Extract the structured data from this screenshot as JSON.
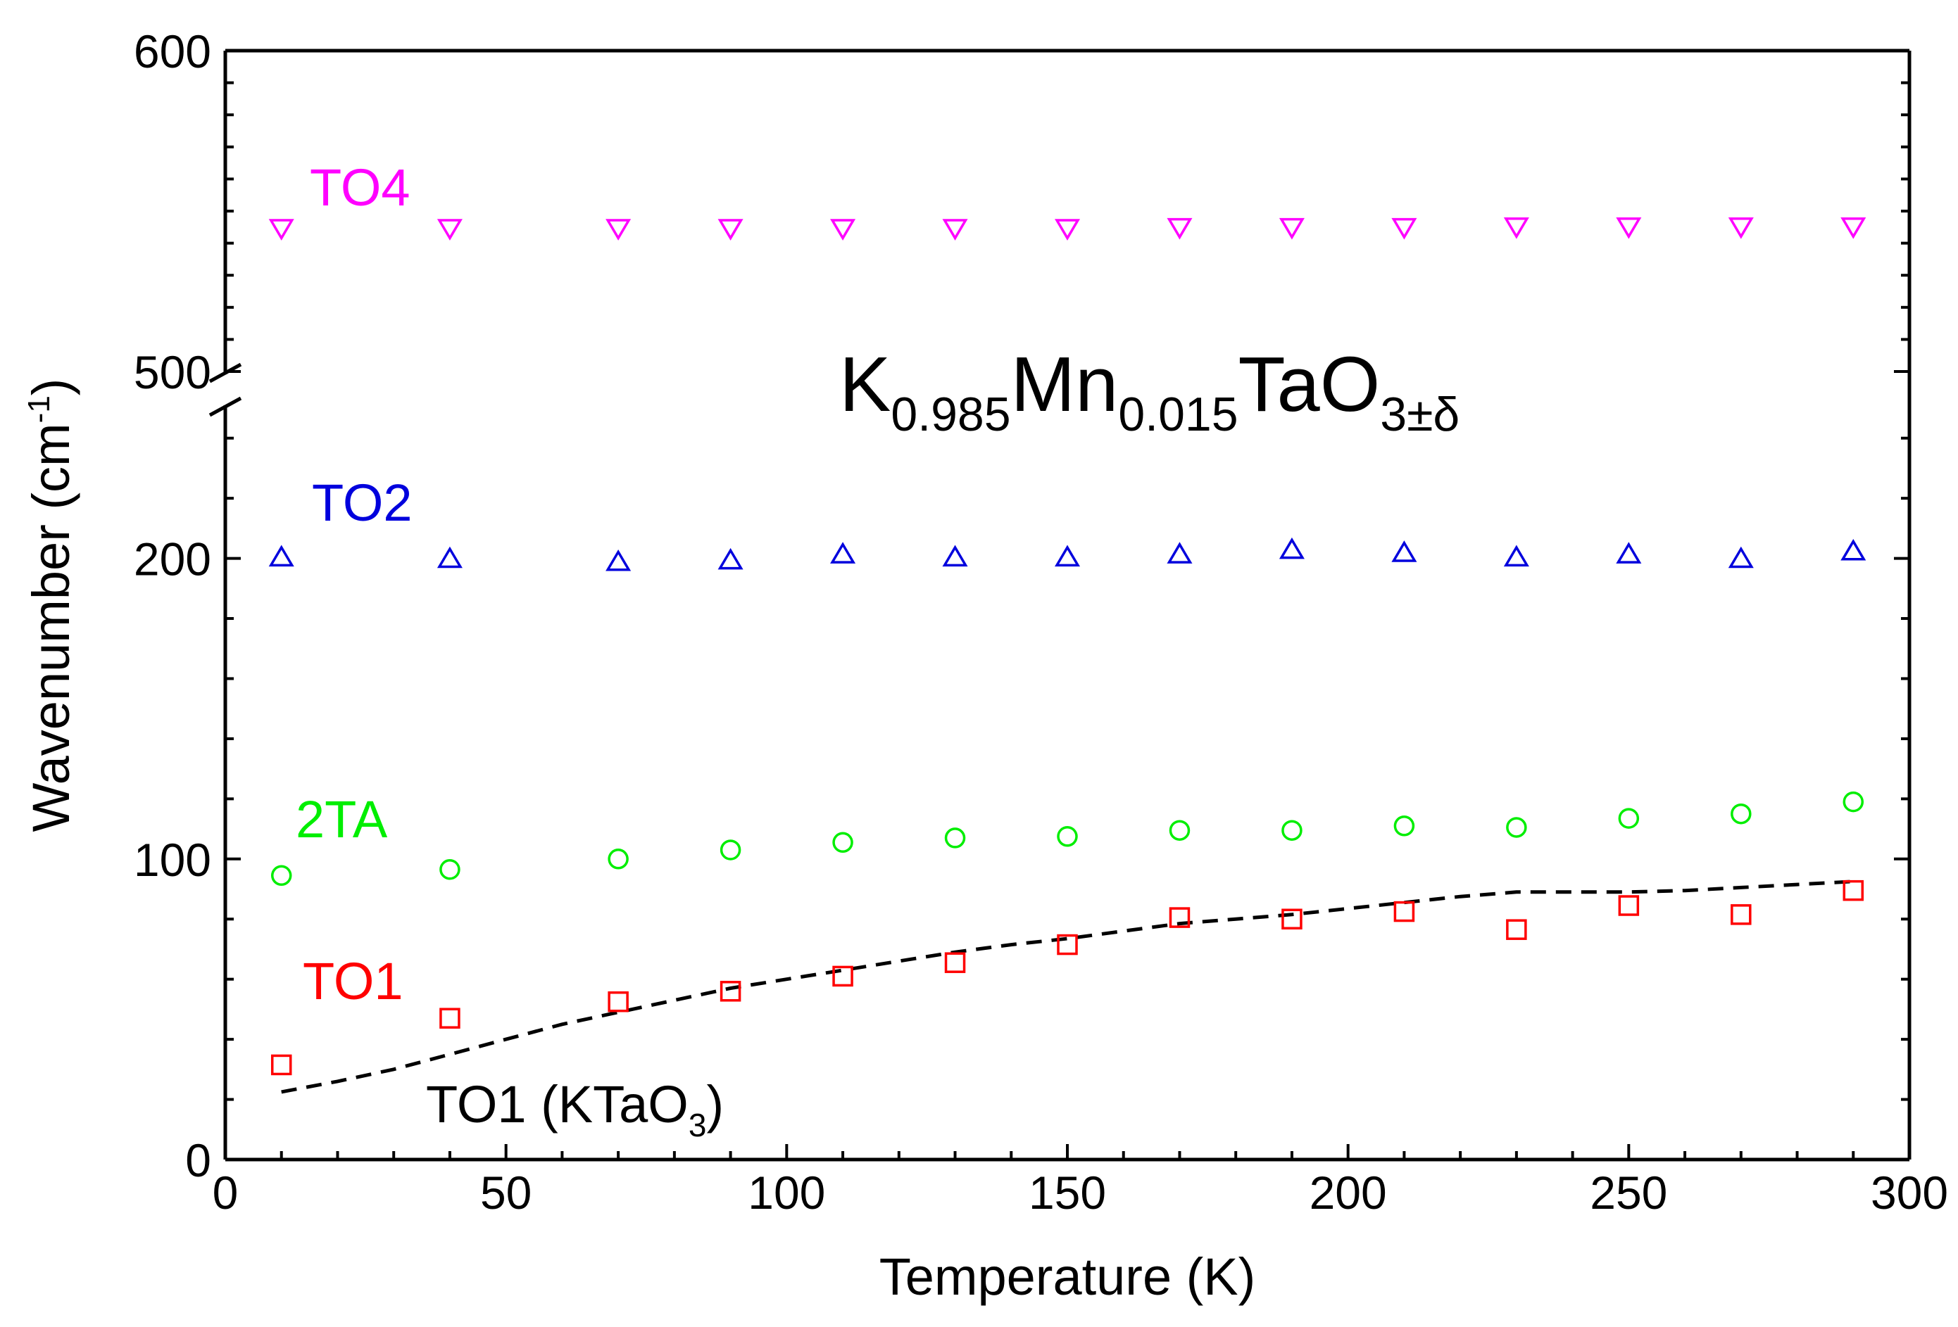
{
  "chart_data": {
    "type": "scatter",
    "title": "K0.985Mn0.015TaO3±δ",
    "formula": {
      "parts": [
        {
          "text": "K",
          "sub": "0.985"
        },
        {
          "text": "Mn",
          "sub": "0.015"
        },
        {
          "text": "TaO",
          "sub": "3±δ"
        }
      ]
    },
    "xlabel": "Temperature (K)",
    "ylabel_main": "Wavenumber (cm",
    "ylabel_sup": "-1",
    "ylabel_close": ")",
    "xlim": [
      0,
      300
    ],
    "x_ticks": [
      0,
      50,
      100,
      150,
      200,
      250,
      300
    ],
    "y_lower": {
      "range": [
        0,
        250
      ],
      "ticks": [
        0,
        100,
        200
      ]
    },
    "y_upper": {
      "range": [
        500,
        600
      ],
      "ticks": [
        500,
        600
      ]
    },
    "axis_break": {
      "lower": 250,
      "upper": 500
    },
    "grid": false,
    "series": [
      {
        "name": "TO4",
        "color": "#ff00ff",
        "marker": "triangle-down",
        "x": [
          10,
          40,
          70,
          90,
          110,
          130,
          150,
          170,
          190,
          210,
          230,
          250,
          270,
          290
        ],
        "y": [
          545,
          545,
          545,
          545,
          545,
          545,
          545,
          545.3,
          545.3,
          545.3,
          545.5,
          545.5,
          545.5,
          545.5
        ]
      },
      {
        "name": "TO2",
        "color": "#0000dd",
        "marker": "triangle-up",
        "x": [
          10,
          40,
          70,
          90,
          110,
          130,
          150,
          170,
          190,
          210,
          230,
          250,
          270,
          290
        ],
        "y": [
          200,
          199.5,
          198.5,
          199,
          201,
          200,
          200,
          201,
          202.5,
          201.5,
          200,
          201,
          199.5,
          202
        ]
      },
      {
        "name": "2TA",
        "color": "#00ee00",
        "marker": "circle",
        "x": [
          10,
          40,
          70,
          90,
          110,
          130,
          150,
          170,
          190,
          210,
          230,
          250,
          270,
          290
        ],
        "y": [
          94.5,
          96.5,
          100,
          103,
          105.5,
          107,
          107.5,
          109.5,
          109.5,
          111,
          110.5,
          113.5,
          115,
          119
        ]
      },
      {
        "name": "TO1",
        "color": "#ff0000",
        "marker": "square",
        "x": [
          10,
          40,
          70,
          90,
          110,
          130,
          150,
          170,
          190,
          210,
          230,
          250,
          270,
          290
        ],
        "y": [
          31.5,
          47,
          52.5,
          56,
          61,
          65.5,
          71.5,
          80.5,
          80,
          82.5,
          76.5,
          84.5,
          81.5,
          89.5
        ]
      }
    ],
    "reference_curve": {
      "name": "TO1 (KTaO3)",
      "label_main": "TO1 (KTaO",
      "label_sub": "3",
      "label_close": ")",
      "color": "#000000",
      "style": "dashed",
      "x": [
        10,
        20,
        30,
        40,
        50,
        60,
        70,
        80,
        90,
        100,
        110,
        120,
        130,
        140,
        150,
        160,
        170,
        180,
        190,
        200,
        210,
        220,
        230,
        240,
        250,
        260,
        270,
        280,
        290
      ],
      "y": [
        22.5,
        26,
        30,
        35,
        40,
        45,
        49,
        53,
        57,
        60,
        63,
        66,
        69,
        71.5,
        73.5,
        76,
        78.5,
        80,
        81.5,
        83.5,
        85.5,
        87.5,
        89,
        89,
        89,
        89.5,
        90.5,
        91.5,
        92.5
      ]
    },
    "annotations": [
      {
        "text": "TO4",
        "color": "#ff00ff",
        "series": "TO4"
      },
      {
        "text": "TO2",
        "color": "#0000dd",
        "series": "TO2"
      },
      {
        "text": "2TA",
        "color": "#00ee00",
        "series": "2TA"
      },
      {
        "text": "TO1",
        "color": "#ff0000",
        "series": "TO1"
      }
    ]
  }
}
